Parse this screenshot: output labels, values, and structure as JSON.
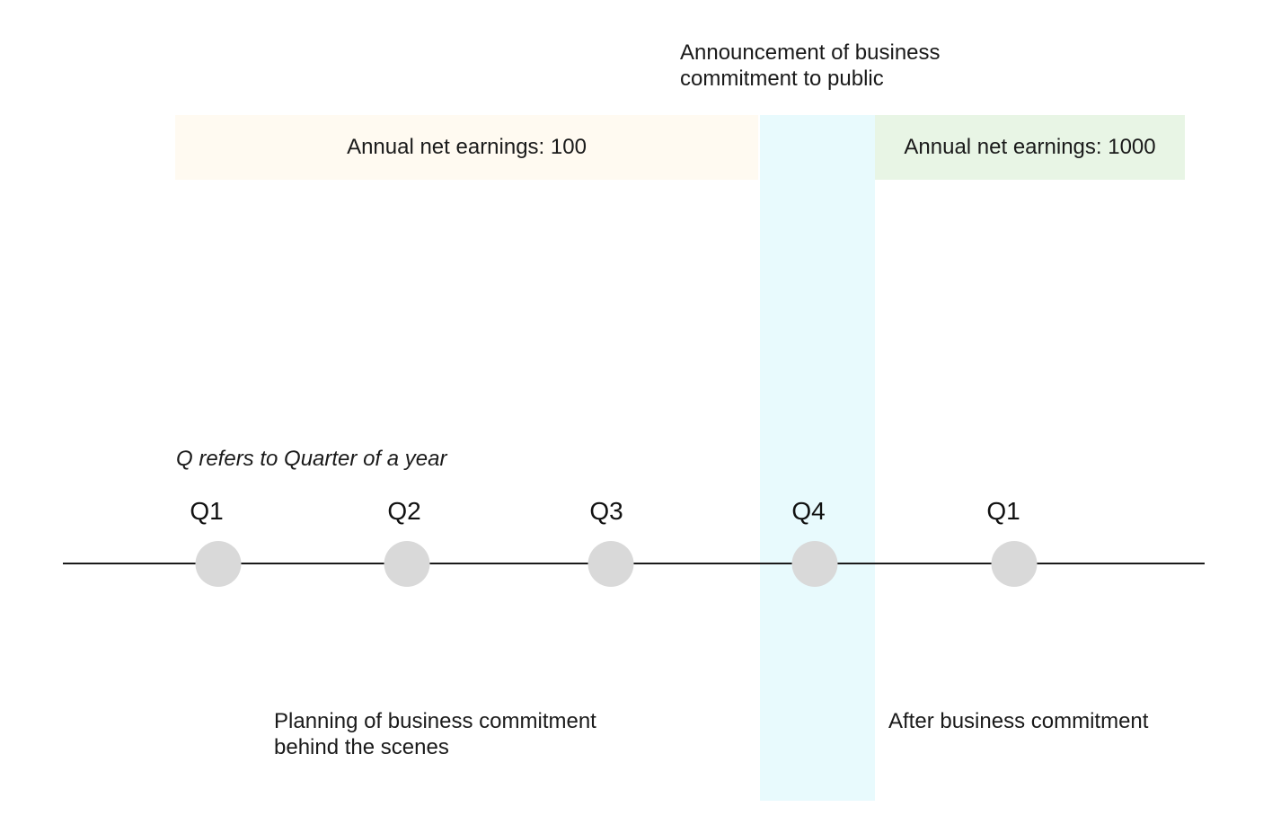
{
  "announcement": {
    "line1": "Announcement of business",
    "line2": "commitment to public"
  },
  "bands": {
    "before": "Annual net earnings: 100",
    "after": "Annual net earnings: 1000"
  },
  "note": "Q refers to Quarter of a year",
  "quarters": [
    {
      "label": "Q1"
    },
    {
      "label": "Q2"
    },
    {
      "label": "Q3"
    },
    {
      "label": "Q4"
    },
    {
      "label": "Q1"
    }
  ],
  "captions": {
    "before_line1": "Planning of business commitment",
    "before_line2": "behind the scenes",
    "after": "After business commitment"
  },
  "colors": {
    "highlight": "#e8fafd",
    "band_before": "#fffaf1",
    "band_after": "#e8f5e5",
    "dot": "#d9d9d9",
    "line": "#1a1a1a"
  }
}
